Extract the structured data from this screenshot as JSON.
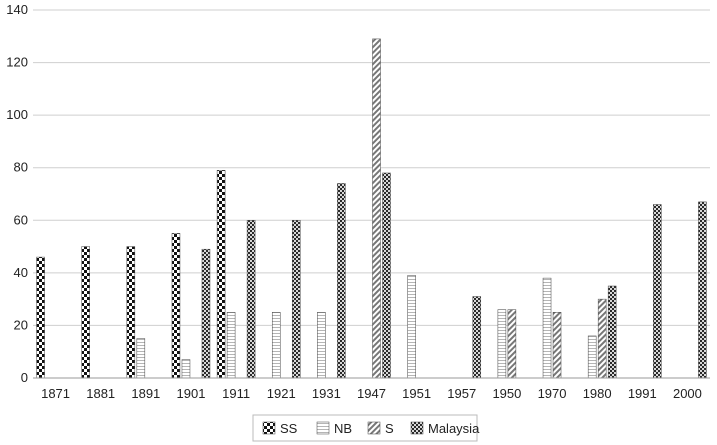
{
  "chart_data": {
    "type": "bar",
    "categories": [
      "1871",
      "1881",
      "1891",
      "1901",
      "1911",
      "1921",
      "1931",
      "1947",
      "1951",
      "1957",
      "1950",
      "1970",
      "1980",
      "1991",
      "2000"
    ],
    "ylim": [
      0,
      140
    ],
    "yticks": [
      0,
      20,
      40,
      60,
      80,
      100,
      120,
      140
    ],
    "grid": true,
    "legend_position": "bottom",
    "series": [
      {
        "name": "SS",
        "pattern": "checker-large",
        "values": [
          46,
          50,
          50,
          55,
          79,
          null,
          null,
          null,
          null,
          null,
          null,
          null,
          null,
          null,
          null
        ]
      },
      {
        "name": "NB",
        "pattern": "horizontal-lines",
        "values": [
          null,
          null,
          15,
          7,
          25,
          25,
          25,
          null,
          39,
          null,
          26,
          38,
          16,
          null,
          null
        ]
      },
      {
        "name": "S",
        "pattern": "diagonal-lines",
        "values": [
          null,
          null,
          null,
          null,
          null,
          null,
          null,
          129,
          null,
          null,
          26,
          25,
          30,
          null,
          null
        ]
      },
      {
        "name": "Malaysia",
        "pattern": "checker-small",
        "values": [
          null,
          null,
          null,
          49,
          60,
          60,
          74,
          78,
          null,
          31,
          null,
          null,
          35,
          66,
          67
        ]
      }
    ]
  }
}
